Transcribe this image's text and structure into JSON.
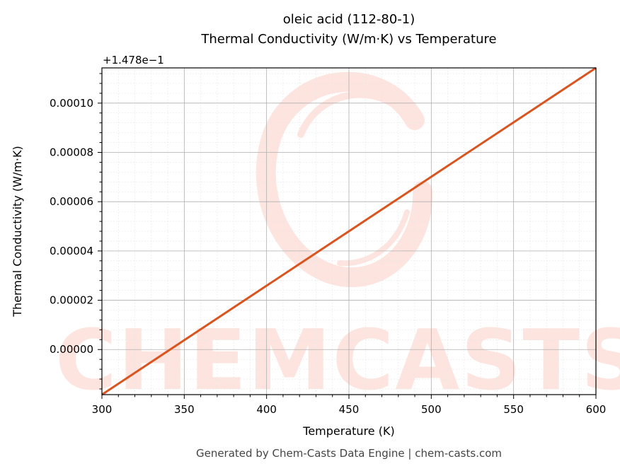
{
  "chart_data": {
    "type": "line",
    "title": "oleic acid (112-80-1)",
    "subtitle": "Thermal Conductivity (W/m·K) vs Temperature",
    "xlabel": "Temperature (K)",
    "ylabel": "Thermal Conductivity (W/m·K)",
    "y_offset_label": "+1.478e−1",
    "y_offset": 0.1478,
    "xlim": [
      300,
      600
    ],
    "ylim": [
      -1.83e-05,
      0.0001143
    ],
    "x_ticks": [
      300,
      350,
      400,
      450,
      500,
      550,
      600
    ],
    "x_tick_labels": [
      "300",
      "350",
      "400",
      "450",
      "500",
      "550",
      "600"
    ],
    "y_ticks": [
      0.0,
      2e-05,
      4e-05,
      6e-05,
      8e-05,
      0.0001
    ],
    "y_tick_labels": [
      "0.00000",
      "0.00002",
      "0.00004",
      "0.00006",
      "0.00008",
      "0.00010"
    ],
    "grid": true,
    "series": [
      {
        "color": "#d9541e",
        "x": [
          300,
          600
        ],
        "y": [
          -1.83e-05,
          0.0001143
        ]
      }
    ]
  },
  "watermark": {
    "text": "CHEMCASTS",
    "color": "#fde0da"
  },
  "footer": "Generated by Chem-Casts Data Engine | chem-casts.com"
}
